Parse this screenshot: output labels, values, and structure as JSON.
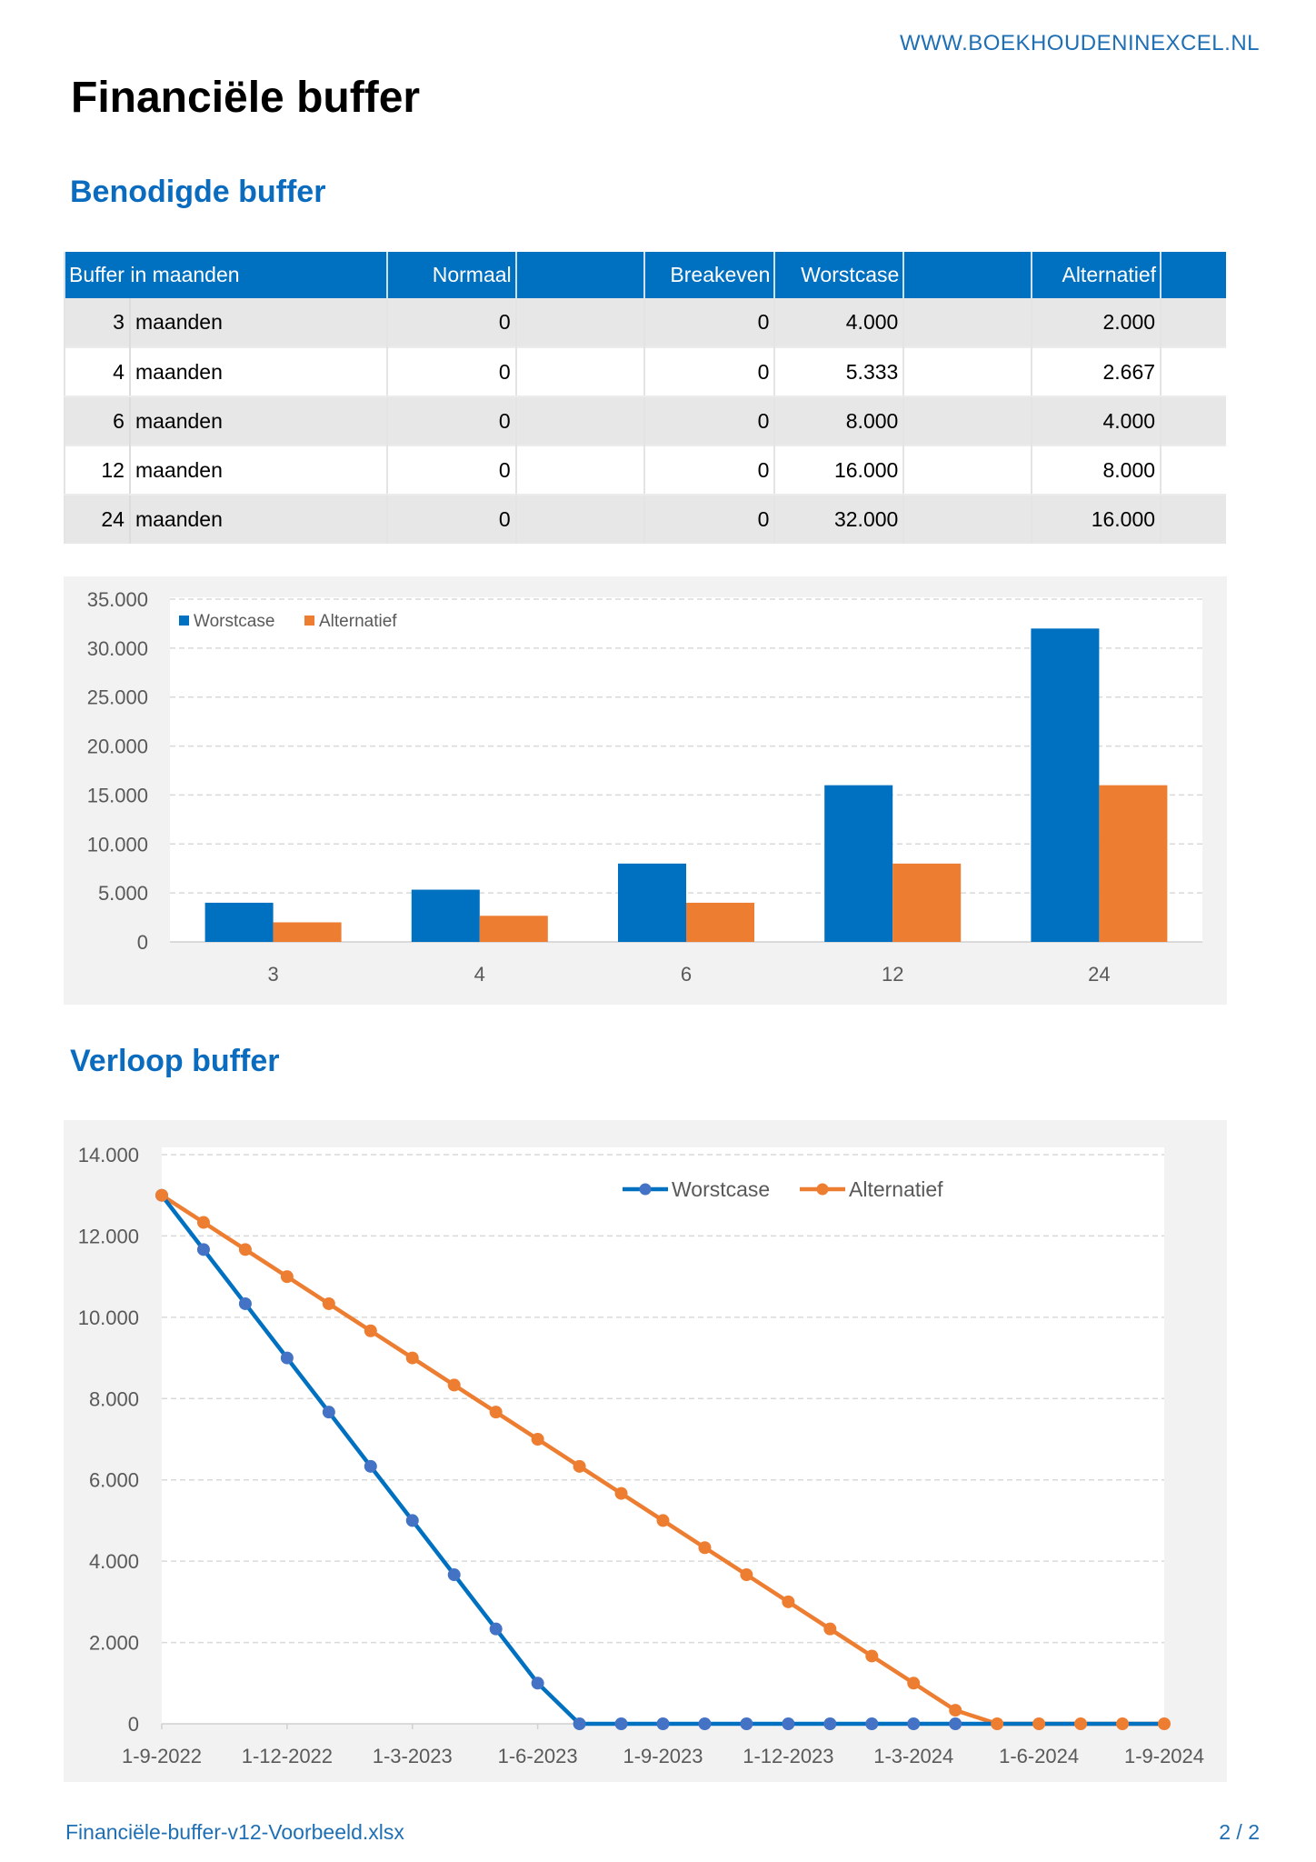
{
  "header": {
    "site": "WWW.BOEKHOUDENINEXCEL.NL",
    "title": "Financiële buffer"
  },
  "section1": {
    "heading": "Benodigde buffer"
  },
  "table": {
    "headers": [
      "Buffer in maanden",
      "",
      "Normaal",
      "",
      "Breakeven",
      "Worstcase",
      "",
      "Alternatief",
      ""
    ],
    "rows": [
      [
        "3",
        "maanden",
        "0",
        "",
        "0",
        "4.000",
        "",
        "2.000",
        ""
      ],
      [
        "4",
        "maanden",
        "0",
        "",
        "0",
        "5.333",
        "",
        "2.667",
        ""
      ],
      [
        "6",
        "maanden",
        "0",
        "",
        "0",
        "8.000",
        "",
        "4.000",
        ""
      ],
      [
        "12",
        "maanden",
        "0",
        "",
        "0",
        "16.000",
        "",
        "8.000",
        ""
      ],
      [
        "24",
        "maanden",
        "0",
        "",
        "0",
        "32.000",
        "",
        "16.000",
        ""
      ]
    ]
  },
  "section2": {
    "heading": "Verloop buffer"
  },
  "colors": {
    "blue": "#0070c0",
    "orange": "#ed7d31",
    "marker_blue": "#4472c4",
    "heading": "#0b6cbf"
  },
  "chart_data": [
    {
      "type": "bar",
      "categories": [
        "3",
        "4",
        "6",
        "12",
        "24"
      ],
      "series": [
        {
          "name": "Worstcase",
          "values": [
            4000,
            5333,
            8000,
            16000,
            32000
          ],
          "color": "#0070c0"
        },
        {
          "name": "Alternatief",
          "values": [
            2000,
            2667,
            4000,
            8000,
            16000
          ],
          "color": "#ed7d31"
        }
      ],
      "ylim": [
        0,
        35000
      ],
      "yticks": [
        "0",
        "5.000",
        "10.000",
        "15.000",
        "20.000",
        "25.000",
        "30.000",
        "35.000"
      ],
      "grid": true,
      "legend": "top-left"
    },
    {
      "type": "line",
      "x": [
        "1-9-2022",
        "1-10-2022",
        "1-11-2022",
        "1-12-2022",
        "1-1-2023",
        "1-2-2023",
        "1-3-2023",
        "1-4-2023",
        "1-5-2023",
        "1-6-2023",
        "1-7-2023",
        "1-8-2023",
        "1-9-2023",
        "1-10-2023",
        "1-11-2023",
        "1-12-2023",
        "1-1-2024",
        "1-2-2024",
        "1-3-2024",
        "1-4-2024",
        "1-5-2024",
        "1-6-2024",
        "1-7-2024",
        "1-8-2024",
        "1-9-2024"
      ],
      "xticks": [
        "1-9-2022",
        "1-12-2022",
        "1-3-2023",
        "1-6-2023",
        "1-9-2023",
        "1-12-2023",
        "1-3-2024",
        "1-6-2024",
        "1-9-2024"
      ],
      "series": [
        {
          "name": "Worstcase",
          "values": [
            13000,
            11667,
            10333,
            9000,
            7667,
            6333,
            5000,
            3667,
            2333,
            1000,
            0,
            0,
            0,
            0,
            0,
            0,
            0,
            0,
            0,
            0,
            0,
            0,
            0,
            0,
            0
          ],
          "color": "#0070c0"
        },
        {
          "name": "Alternatief",
          "values": [
            13000,
            12333,
            11667,
            11000,
            10333,
            9667,
            9000,
            8333,
            7667,
            7000,
            6333,
            5667,
            5000,
            4333,
            3667,
            3000,
            2333,
            1667,
            1000,
            333,
            0,
            0,
            0,
            0,
            0
          ],
          "color": "#ed7d31"
        }
      ],
      "ylim": [
        0,
        14000
      ],
      "yticks": [
        "0",
        "2.000",
        "4.000",
        "6.000",
        "8.000",
        "10.000",
        "12.000",
        "14.000"
      ],
      "grid": true,
      "legend": "top-right"
    }
  ],
  "footer": {
    "file": "Financiële-buffer-v12-Voorbeeld.xlsx",
    "page": "2 / 2"
  }
}
